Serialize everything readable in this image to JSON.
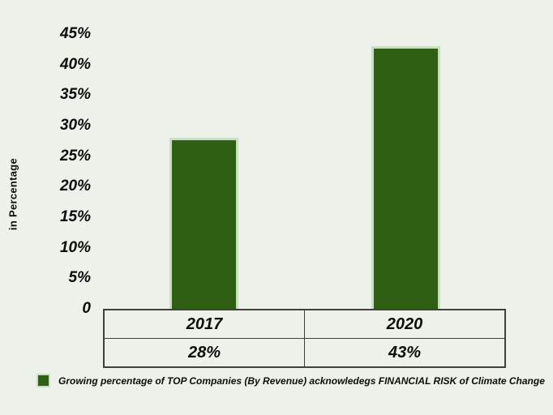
{
  "colors": {
    "background": "#ecf1ea",
    "bar_fill": "#2f5f12",
    "bar_border": "#c9dfc3",
    "table_border": "#3f3f3f",
    "text": "#0d0d0d"
  },
  "y_axis": {
    "title": "in Percentage",
    "tick_labels": [
      "45%",
      "40%",
      "35%",
      "30%",
      "25%",
      "20%",
      "15%",
      "10%",
      "5%",
      "0"
    ],
    "tick_values": [
      45,
      40,
      35,
      30,
      25,
      20,
      15,
      10,
      5,
      0
    ]
  },
  "chart_data": {
    "type": "bar",
    "categories": [
      "2017",
      "2020"
    ],
    "values": [
      28,
      43
    ],
    "value_labels": [
      "28%",
      "43%"
    ],
    "title": "",
    "xlabel": "",
    "ylabel": "in Percentage",
    "ylim": [
      0,
      45
    ],
    "tick_step": 5,
    "grid": false,
    "legend_position": "bottom",
    "legend": [
      "Growing percentage of TOP Companies (By Revenue) acknowledegs FINANCIAL RISK of Climate Change"
    ]
  }
}
